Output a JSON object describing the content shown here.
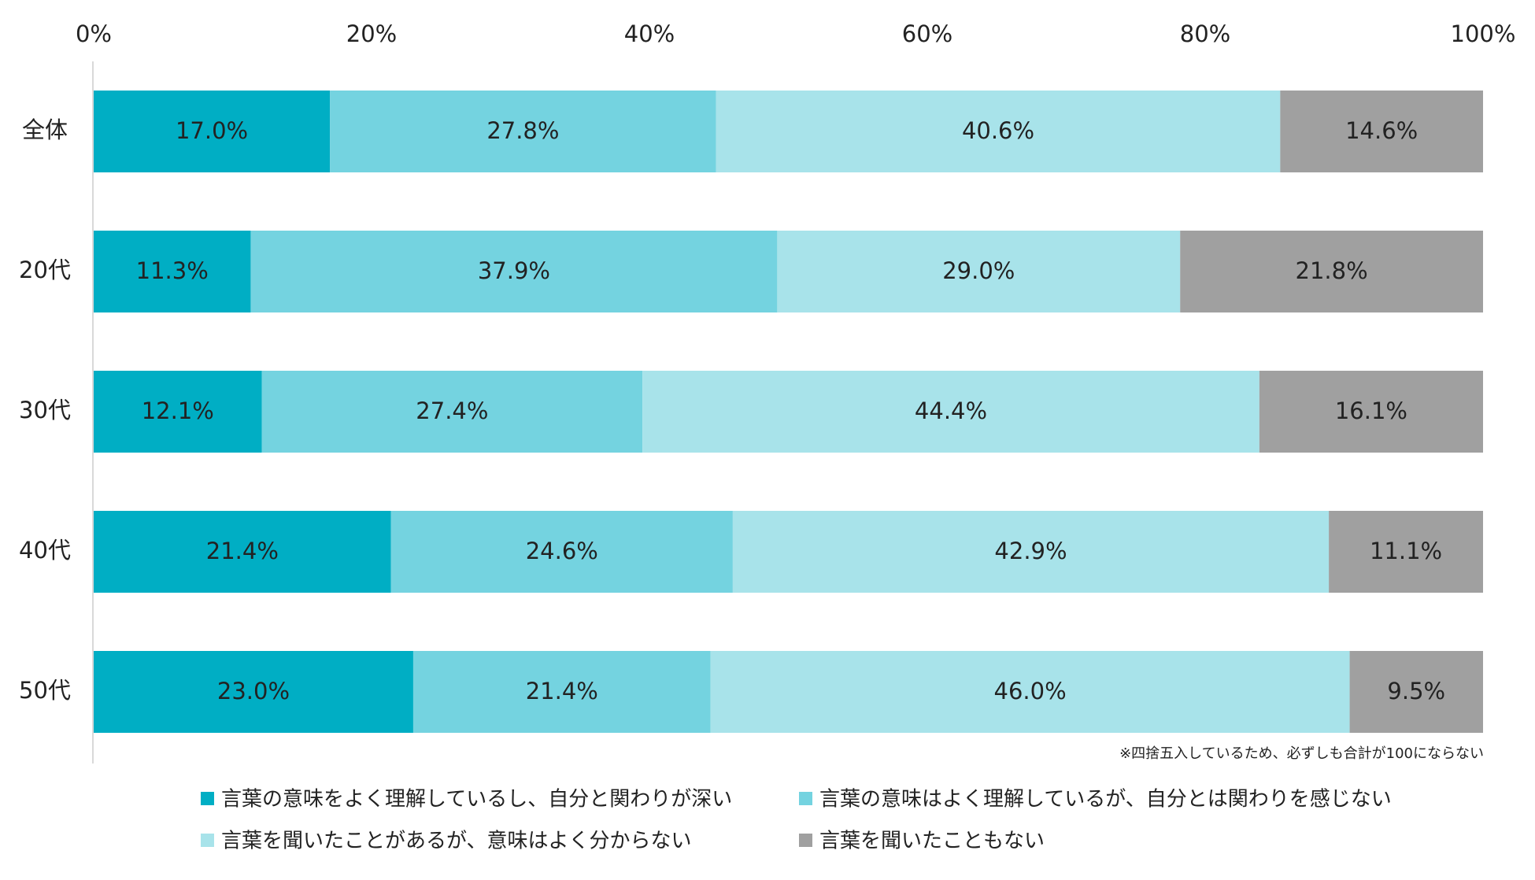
{
  "chart_data": {
    "type": "bar",
    "orientation": "horizontal",
    "stacked": true,
    "categories": [
      "全体",
      "20代",
      "30代",
      "40代",
      "50代"
    ],
    "series": [
      {
        "name": "言葉の意味をよく理解しているし、自分と関わりが深い",
        "color": "#00AEC4",
        "values": [
          17.0,
          11.3,
          12.1,
          21.4,
          23.0
        ],
        "labels": [
          "17.0%",
          "11.3%",
          "12.1%",
          "21.4%",
          "23.0%"
        ]
      },
      {
        "name": "言葉の意味はよく理解しているが、自分とは関わりを感じない",
        "color": "#74D3E0",
        "values": [
          27.8,
          37.9,
          27.4,
          24.6,
          21.4
        ],
        "labels": [
          "27.8%",
          "37.9%",
          "27.4%",
          "24.6%",
          "21.4%"
        ]
      },
      {
        "name": "言葉を聞いたことがあるが、意味はよく分からない",
        "color": "#A8E3EA",
        "values": [
          40.6,
          29.0,
          44.4,
          42.9,
          46.0
        ],
        "labels": [
          "40.6%",
          "29.0%",
          "44.4%",
          "42.9%",
          "46.0%"
        ]
      },
      {
        "name": "言葉を聞いたこともない",
        "color": "#A0A0A0",
        "values": [
          14.6,
          21.8,
          16.1,
          11.1,
          9.5
        ],
        "labels": [
          "14.6%",
          "21.8%",
          "16.1%",
          "11.1%",
          "9.5%"
        ]
      }
    ],
    "x_axis": {
      "ticks": [
        "0%",
        "20%",
        "40%",
        "60%",
        "80%",
        "100%"
      ],
      "tick_values": [
        0,
        20,
        40,
        60,
        80,
        100
      ],
      "range": [
        0,
        100
      ],
      "position": "top"
    },
    "grid": false,
    "legend_position": "bottom",
    "note": "※四捨五入しているため、必ずしも合計が100にならない"
  }
}
